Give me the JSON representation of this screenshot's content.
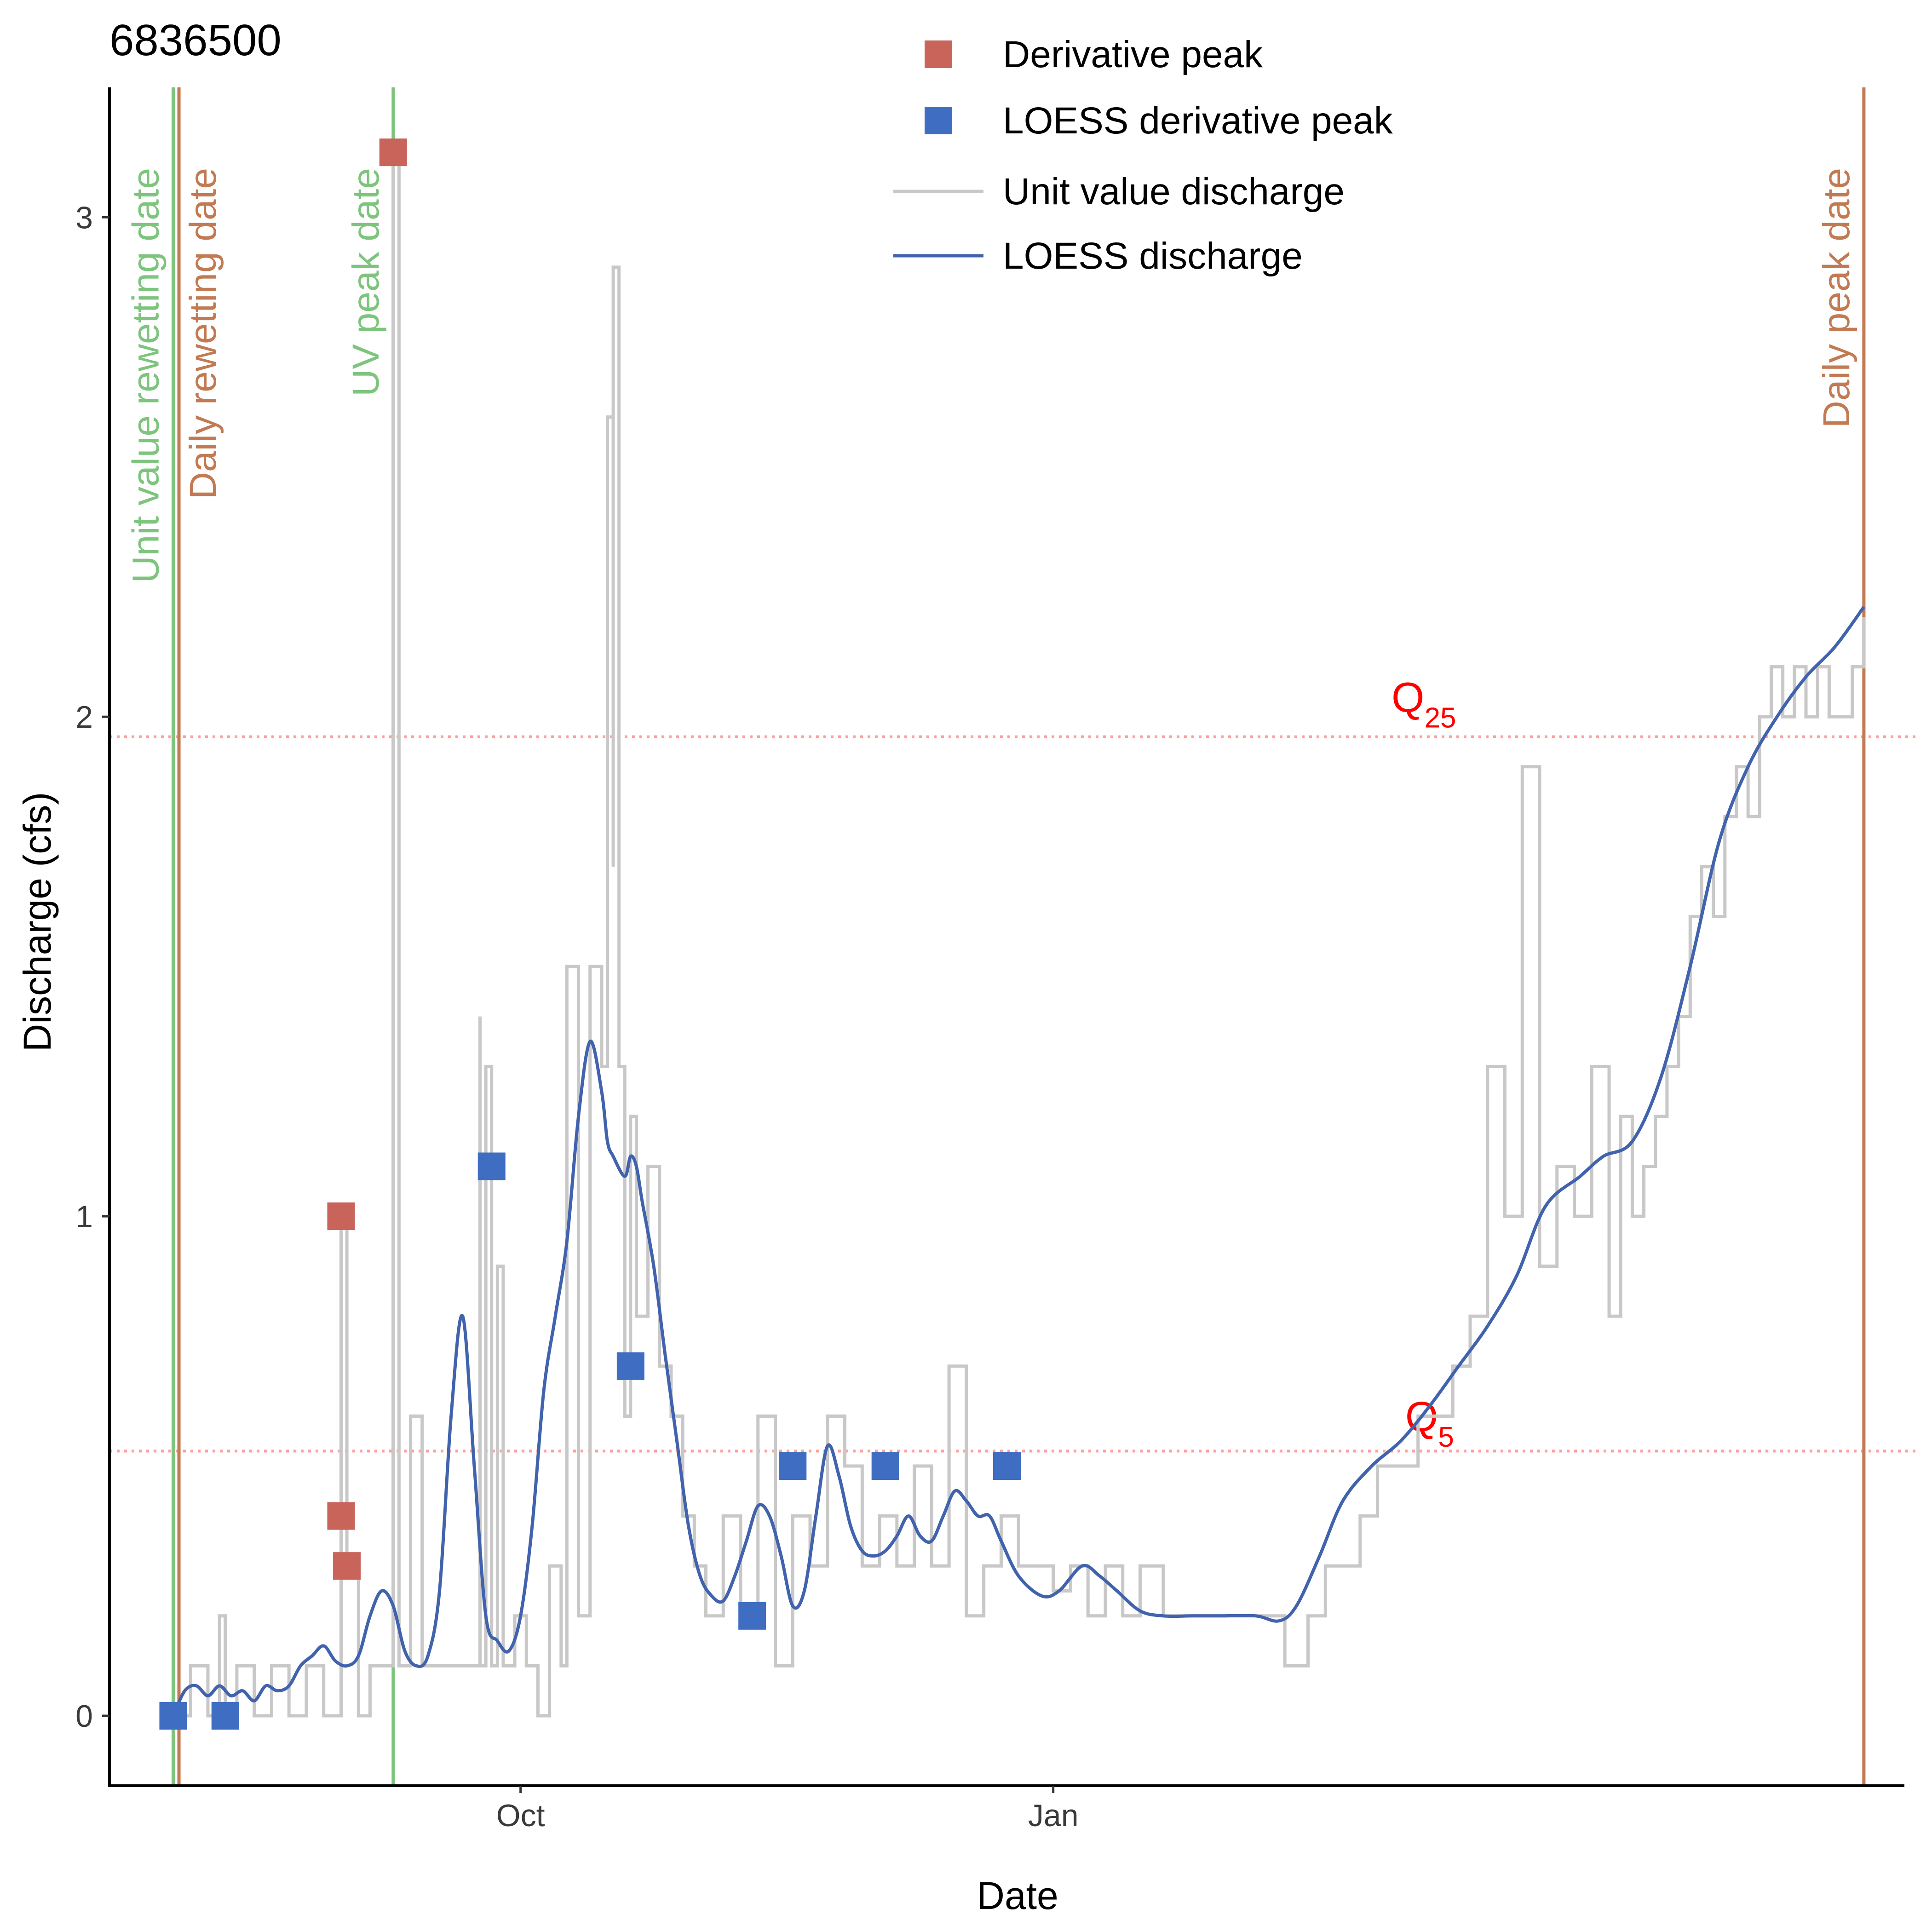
{
  "chart_data": {
    "type": "line",
    "title": "6836500",
    "xlabel": "Date",
    "ylabel": "Discharge (cfs)",
    "x_ticks": [
      {
        "date": "2023-10-01",
        "label": "Oct"
      },
      {
        "date": "2024-01-01",
        "label": "Jan"
      }
    ],
    "y_ticks": [
      0,
      1,
      2,
      3
    ],
    "xlim": [
      "2023-07-22",
      "2024-05-27"
    ],
    "ylim": [
      -0.14,
      3.26
    ],
    "grid": false,
    "legend_position": "top-center",
    "legend": [
      {
        "label": "Derivative peak",
        "kind": "square",
        "color": "#c8645a"
      },
      {
        "label": "LOESS derivative peak",
        "kind": "square",
        "color": "#3f6dc2"
      },
      {
        "label": "Unit value discharge",
        "kind": "line",
        "color": "#c8c8c8"
      },
      {
        "label": "LOESS discharge",
        "kind": "line",
        "color": "#4163ad"
      }
    ],
    "hlines": [
      {
        "name": "Q25",
        "label_main": "Q",
        "label_sub": "25",
        "y": 1.96,
        "color": "#ff9f9f",
        "label_date": "2024-03-05",
        "label_y": 2.01
      },
      {
        "name": "Q5",
        "label_main": "Q",
        "label_sub": "5",
        "y": 0.53,
        "color": "#ff9f9f",
        "label_date": "2024-03-06",
        "label_y": 0.57
      }
    ],
    "vlines": [
      {
        "date": "2023-08-02",
        "label": "Unit value rewetting date",
        "color": "#7dc47d",
        "label_side": "left"
      },
      {
        "date": "2023-08-03",
        "label": "Daily rewetting date",
        "color": "#c27a52",
        "label_side": "right"
      },
      {
        "date": "2023-09-09",
        "label": "UV peak date",
        "color": "#7dc47d",
        "label_side": "left"
      },
      {
        "date": "2024-05-20",
        "label": "Daily peak date",
        "color": "#c27a52",
        "label_side": "left"
      }
    ],
    "series": [
      {
        "name": "Unit value discharge",
        "kind": "line",
        "color": "#c8c8c8",
        "x": [
          "2023-08-02",
          "2023-08-05",
          "2023-08-08",
          "2023-08-10",
          "2023-08-11",
          "2023-08-13",
          "2023-08-16",
          "2023-08-19",
          "2023-08-22",
          "2023-08-25",
          "2023-08-28",
          "2023-08-31",
          "2023-09-01",
          "2023-09-03",
          "2023-09-05",
          "2023-09-07",
          "2023-09-09",
          "2023-09-09",
          "2023-09-10",
          "2023-09-12",
          "2023-09-14",
          "2023-09-16",
          "2023-09-18",
          "2023-09-20",
          "2023-09-22",
          "2023-09-24",
          "2023-09-24",
          "2023-09-25",
          "2023-09-26",
          "2023-09-27",
          "2023-09-28",
          "2023-09-30",
          "2023-10-02",
          "2023-10-04",
          "2023-10-06",
          "2023-10-08",
          "2023-10-09",
          "2023-10-11",
          "2023-10-13",
          "2023-10-15",
          "2023-10-16",
          "2023-10-17",
          "2023-10-17",
          "2023-10-18",
          "2023-10-19",
          "2023-10-20",
          "2023-10-21",
          "2023-10-23",
          "2023-10-25",
          "2023-10-27",
          "2023-10-29",
          "2023-10-31",
          "2023-11-02",
          "2023-11-05",
          "2023-11-08",
          "2023-11-11",
          "2023-11-14",
          "2023-11-17",
          "2023-11-20",
          "2023-11-23",
          "2023-11-26",
          "2023-11-29",
          "2023-12-02",
          "2023-12-05",
          "2023-12-08",
          "2023-12-11",
          "2023-12-14",
          "2023-12-17",
          "2023-12-20",
          "2023-12-23",
          "2023-12-26",
          "2023-12-29",
          "2024-01-01",
          "2024-01-04",
          "2024-01-07",
          "2024-01-10",
          "2024-01-13",
          "2024-01-16",
          "2024-01-20",
          "2024-01-25",
          "2024-01-30",
          "2024-02-05",
          "2024-02-10",
          "2024-02-14",
          "2024-02-17",
          "2024-02-20",
          "2024-02-23",
          "2024-02-26",
          "2024-03-01",
          "2024-03-04",
          "2024-03-07",
          "2024-03-10",
          "2024-03-13",
          "2024-03-16",
          "2024-03-19",
          "2024-03-22",
          "2024-03-25",
          "2024-03-28",
          "2024-03-31",
          "2024-04-03",
          "2024-04-06",
          "2024-04-08",
          "2024-04-10",
          "2024-04-12",
          "2024-04-14",
          "2024-04-16",
          "2024-04-18",
          "2024-04-20",
          "2024-04-22",
          "2024-04-24",
          "2024-04-26",
          "2024-04-28",
          "2024-04-30",
          "2024-05-02",
          "2024-05-04",
          "2024-05-06",
          "2024-05-08",
          "2024-05-10",
          "2024-05-12",
          "2024-05-14",
          "2024-05-16",
          "2024-05-18",
          "2024-05-20"
        ],
        "y": [
          0.0,
          0.1,
          0.0,
          0.2,
          0.0,
          0.1,
          0.0,
          0.1,
          0.0,
          0.1,
          0.0,
          1.0,
          0.3,
          0.0,
          0.1,
          0.1,
          0.1,
          3.13,
          0.1,
          0.6,
          0.1,
          0.1,
          0.1,
          0.1,
          0.1,
          1.4,
          0.1,
          1.3,
          0.1,
          0.9,
          0.1,
          0.2,
          0.1,
          0.0,
          0.3,
          0.1,
          1.5,
          0.2,
          1.5,
          1.3,
          2.6,
          1.7,
          2.9,
          1.3,
          0.6,
          1.2,
          0.8,
          1.1,
          0.7,
          0.6,
          0.4,
          0.3,
          0.2,
          0.4,
          0.2,
          0.6,
          0.1,
          0.4,
          0.3,
          0.6,
          0.5,
          0.3,
          0.4,
          0.3,
          0.5,
          0.3,
          0.7,
          0.2,
          0.3,
          0.4,
          0.3,
          0.3,
          0.25,
          0.3,
          0.2,
          0.3,
          0.2,
          0.3,
          0.2,
          0.2,
          0.2,
          0.2,
          0.1,
          0.2,
          0.3,
          0.3,
          0.4,
          0.5,
          0.5,
          0.6,
          0.6,
          0.7,
          0.8,
          1.3,
          1.0,
          1.9,
          0.9,
          1.1,
          1.0,
          1.3,
          0.8,
          1.2,
          1.0,
          1.1,
          1.2,
          1.3,
          1.4,
          1.6,
          1.7,
          1.6,
          1.8,
          1.9,
          1.8,
          2.0,
          2.1,
          2.0,
          2.1,
          2.0,
          2.1,
          2.0,
          2.0,
          2.1,
          2.2
        ]
      },
      {
        "name": "LOESS discharge",
        "kind": "line",
        "color": "#4163ad",
        "x": [
          "2023-08-02",
          "2023-08-04",
          "2023-08-06",
          "2023-08-08",
          "2023-08-10",
          "2023-08-12",
          "2023-08-14",
          "2023-08-16",
          "2023-08-18",
          "2023-08-20",
          "2023-08-22",
          "2023-08-24",
          "2023-08-26",
          "2023-08-28",
          "2023-08-30",
          "2023-09-01",
          "2023-09-03",
          "2023-09-05",
          "2023-09-07",
          "2023-09-09",
          "2023-09-11",
          "2023-09-13",
          "2023-09-15",
          "2023-09-17",
          "2023-09-19",
          "2023-09-21",
          "2023-09-23",
          "2023-09-25",
          "2023-09-27",
          "2023-09-29",
          "2023-10-01",
          "2023-10-03",
          "2023-10-05",
          "2023-10-07",
          "2023-10-09",
          "2023-10-11",
          "2023-10-13",
          "2023-10-15",
          "2023-10-16",
          "2023-10-17",
          "2023-10-19",
          "2023-10-20",
          "2023-10-21",
          "2023-10-22",
          "2023-10-24",
          "2023-10-26",
          "2023-10-28",
          "2023-10-30",
          "2023-11-01",
          "2023-11-03",
          "2023-11-05",
          "2023-11-07",
          "2023-11-09",
          "2023-11-11",
          "2023-11-13",
          "2023-11-15",
          "2023-11-17",
          "2023-11-19",
          "2023-11-21",
          "2023-11-23",
          "2023-11-25",
          "2023-11-27",
          "2023-11-29",
          "2023-12-01",
          "2023-12-03",
          "2023-12-05",
          "2023-12-07",
          "2023-12-09",
          "2023-12-11",
          "2023-12-13",
          "2023-12-15",
          "2023-12-17",
          "2023-12-19",
          "2023-12-21",
          "2023-12-23",
          "2023-12-26",
          "2023-12-30",
          "2024-01-02",
          "2024-01-06",
          "2024-01-09",
          "2024-01-12",
          "2024-01-16",
          "2024-01-20",
          "2024-01-25",
          "2024-01-30",
          "2024-02-05",
          "2024-02-09",
          "2024-02-12",
          "2024-02-16",
          "2024-02-20",
          "2024-02-25",
          "2024-03-01",
          "2024-03-06",
          "2024-03-11",
          "2024-03-16",
          "2024-03-21",
          "2024-03-26",
          "2024-04-01",
          "2024-04-05",
          "2024-04-10",
          "2024-04-15",
          "2024-04-20",
          "2024-04-25",
          "2024-04-30",
          "2024-05-05",
          "2024-05-10",
          "2024-05-15",
          "2024-05-20"
        ],
        "y": [
          0.0,
          0.05,
          0.06,
          0.04,
          0.06,
          0.04,
          0.05,
          0.03,
          0.06,
          0.05,
          0.06,
          0.1,
          0.12,
          0.14,
          0.11,
          0.1,
          0.12,
          0.2,
          0.25,
          0.22,
          0.13,
          0.1,
          0.12,
          0.25,
          0.6,
          0.8,
          0.5,
          0.2,
          0.15,
          0.13,
          0.2,
          0.38,
          0.65,
          0.8,
          0.95,
          1.2,
          1.35,
          1.25,
          1.15,
          1.12,
          1.08,
          1.12,
          1.1,
          1.03,
          0.9,
          0.72,
          0.55,
          0.38,
          0.28,
          0.24,
          0.23,
          0.28,
          0.35,
          0.42,
          0.4,
          0.32,
          0.22,
          0.25,
          0.4,
          0.54,
          0.48,
          0.38,
          0.33,
          0.32,
          0.33,
          0.36,
          0.4,
          0.36,
          0.35,
          0.4,
          0.45,
          0.43,
          0.4,
          0.4,
          0.35,
          0.28,
          0.24,
          0.25,
          0.3,
          0.28,
          0.25,
          0.21,
          0.2,
          0.2,
          0.2,
          0.2,
          0.19,
          0.22,
          0.32,
          0.43,
          0.5,
          0.55,
          0.62,
          0.7,
          0.78,
          0.88,
          1.02,
          1.08,
          1.12,
          1.15,
          1.28,
          1.5,
          1.75,
          1.9,
          2.0,
          2.08,
          2.14,
          2.22
        ]
      }
    ],
    "points": [
      {
        "series": "Derivative peak",
        "color": "#c8645a",
        "x": [
          "2023-08-31",
          "2023-08-31",
          "2023-09-01",
          "2023-09-09"
        ],
        "y": [
          1.0,
          0.4,
          0.3,
          3.13
        ]
      },
      {
        "series": "LOESS derivative peak",
        "color": "#3f6dc2",
        "x": [
          "2023-08-02",
          "2023-08-11",
          "2023-09-26",
          "2023-10-20",
          "2023-11-10",
          "2023-11-17",
          "2023-12-03",
          "2023-12-24"
        ],
        "y": [
          0.0,
          0.0,
          1.1,
          0.7,
          0.2,
          0.5,
          0.5,
          0.5
        ]
      }
    ]
  }
}
